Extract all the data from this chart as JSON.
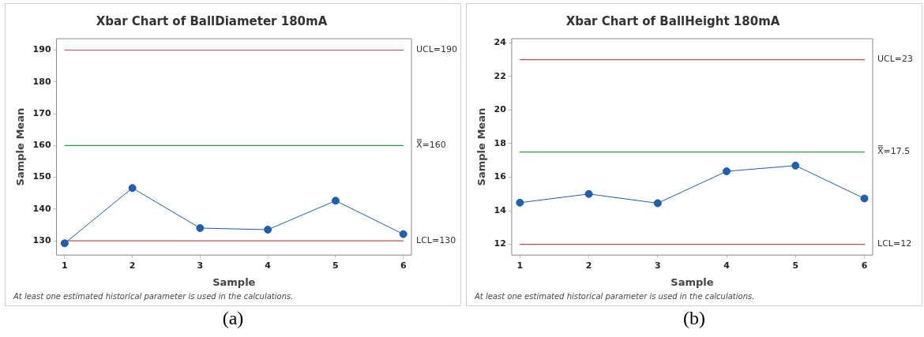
{
  "chart_data": [
    {
      "type": "line",
      "title": "Xbar Chart of BallDiameter 180mA",
      "xlabel": "Sample",
      "ylabel": "Sample Mean",
      "x": [
        1,
        2,
        3,
        4,
        5,
        6
      ],
      "series": [
        {
          "color": "#1f5fad",
          "values": [
            129.2,
            146.6,
            134.0,
            133.5,
            142.6,
            132.1
          ]
        }
      ],
      "xlim": [
        0.88,
        6.12
      ],
      "xticks": [
        1,
        2,
        3,
        4,
        5,
        6
      ],
      "ylim": [
        125.5,
        193.6
      ],
      "yticks": [
        130,
        140,
        150,
        160,
        170,
        180,
        190
      ],
      "ref_lines": [
        {
          "axis": "y",
          "value": 190,
          "label": "UCL=190",
          "color": "#c0504d"
        },
        {
          "axis": "y",
          "value": 160,
          "label": "X̿=160",
          "color": "#2e9b47"
        },
        {
          "axis": "y",
          "value": 130,
          "label": "LCL=130",
          "color": "#c0504d"
        }
      ],
      "marker": "circle",
      "line_style": "solid",
      "grid": false,
      "legend": false,
      "annotations": [
        "At least one estimated historical parameter is used in the calculations.",
        "(a)"
      ]
    },
    {
      "type": "line",
      "title": "Xbar Chart of BallHeight 180mA",
      "xlabel": "Sample",
      "ylabel": "Sample Mean",
      "x": [
        1,
        2,
        3,
        4,
        5,
        6
      ],
      "series": [
        {
          "color": "#1f5fad",
          "values": [
            14.48,
            15.0,
            14.45,
            16.35,
            16.69,
            14.73
          ]
        }
      ],
      "xlim": [
        0.88,
        6.12
      ],
      "xticks": [
        1,
        2,
        3,
        4,
        5,
        6
      ],
      "ylim": [
        11.36,
        24.25
      ],
      "yticks": [
        12,
        14,
        16,
        18,
        20,
        22,
        24
      ],
      "ref_lines": [
        {
          "axis": "y",
          "value": 23,
          "label": "UCL=23",
          "color": "#c0504d"
        },
        {
          "axis": "y",
          "value": 17.5,
          "label": "X̿=17.5",
          "color": "#2e9b47"
        },
        {
          "axis": "y",
          "value": 12,
          "label": "LCL=12",
          "color": "#c0504d"
        }
      ],
      "marker": "circle",
      "line_style": "solid",
      "grid": false,
      "legend": false,
      "annotations": [
        "At least one estimated historical parameter is used in the calculations.",
        "(b)"
      ]
    }
  ]
}
